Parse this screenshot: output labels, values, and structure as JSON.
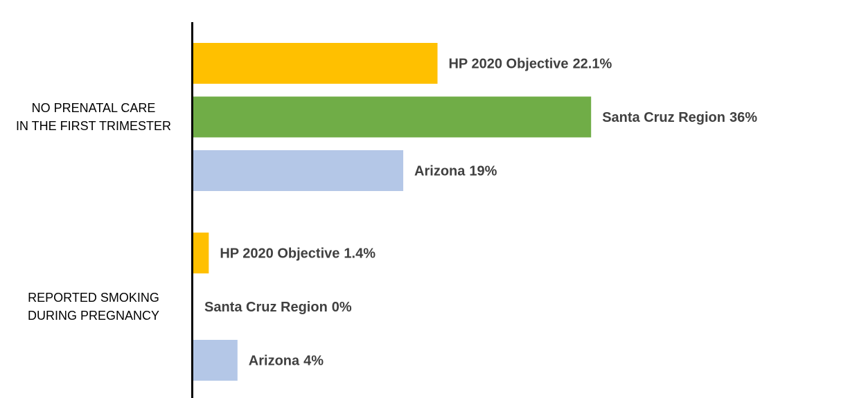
{
  "chart_data": {
    "type": "hbar",
    "categories": [
      "NO PRENATAL CARE\nIN THE FIRST TRIMESTER",
      "REPORTED SMOKING\nDURING PREGNANCY"
    ],
    "series": [
      {
        "name": "HP 2020 Objective",
        "color": "#FFC000",
        "values": [
          22.1,
          1.4
        ],
        "value_labels": [
          "22.1%",
          "1.4%"
        ]
      },
      {
        "name": "Santa Cruz Region",
        "color": "#70AD47",
        "values": [
          36,
          0
        ],
        "value_labels": [
          "36%",
          "0%"
        ]
      },
      {
        "name": "Arizona",
        "color": "#B4C7E7",
        "values": [
          19,
          4
        ],
        "value_labels": [
          "19%",
          "4%"
        ]
      }
    ]
  }
}
